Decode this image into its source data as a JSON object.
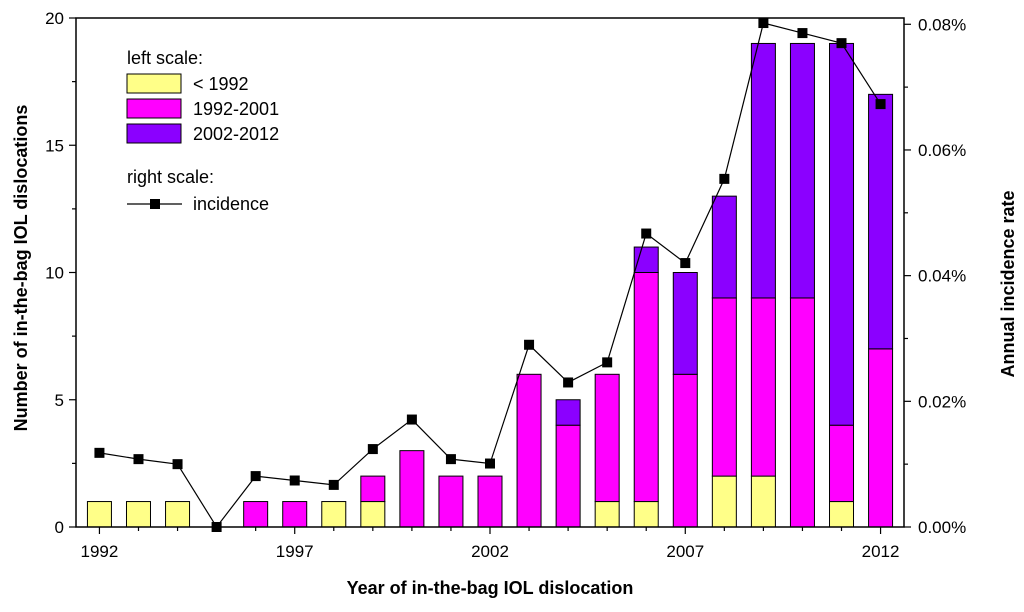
{
  "chart_data": {
    "type": "bar",
    "stacked": true,
    "xlabel": "Year of in-the-bag IOL dislocation",
    "ylabel": "Number of in-the-bag IOL dislocations",
    "ylabel_right": "Annual incidence rate",
    "x": [
      1992,
      1993,
      1994,
      1995,
      1996,
      1997,
      1998,
      1999,
      2000,
      2001,
      2002,
      2003,
      2004,
      2005,
      2006,
      2007,
      2008,
      2009,
      2010,
      2011,
      2012
    ],
    "x_ticks": [
      "1992",
      "1997",
      "2002",
      "2007",
      "2012"
    ],
    "ylim": [
      0,
      20
    ],
    "y_ticks": [
      "0",
      "5",
      "10",
      "15",
      "20"
    ],
    "ylim_right": [
      0,
      0.081
    ],
    "y_ticks_right": [
      "0.00%",
      "0.02%",
      "0.04%",
      "0.06%",
      "0.08%"
    ],
    "series": [
      {
        "name": "< 1992",
        "color": "#ffff88",
        "values": [
          1,
          1,
          1,
          0,
          0,
          0,
          1,
          1,
          0,
          0,
          0,
          0,
          0,
          1,
          1,
          0,
          2,
          2,
          0,
          1,
          0
        ]
      },
      {
        "name": "1992-2001",
        "color": "#ff00ff",
        "values": [
          0,
          0,
          0,
          0,
          1,
          1,
          0,
          1,
          3,
          2,
          2,
          6,
          4,
          5,
          9,
          6,
          7,
          7,
          9,
          3,
          7
        ]
      },
      {
        "name": "2002-2012",
        "color": "#8b00ff",
        "values": [
          0,
          0,
          0,
          0,
          0,
          0,
          0,
          0,
          0,
          0,
          0,
          0,
          1,
          0,
          1,
          4,
          4,
          10,
          10,
          15,
          10
        ]
      }
    ],
    "line_series": {
      "name": "incidence",
      "axis": "right",
      "values": [
        0.0118,
        0.0108,
        0.01,
        0.0,
        0.0081,
        0.0074,
        0.0067,
        0.0124,
        0.0171,
        0.0108,
        0.0101,
        0.029,
        0.023,
        0.0262,
        0.0467,
        0.042,
        0.0554,
        0.0802,
        0.0786,
        0.077,
        0.0673
      ]
    },
    "legend": {
      "left_title": "left scale:",
      "right_title": "right scale:",
      "entries": [
        "< 1992",
        "1992-2001",
        "2002-2012"
      ],
      "line_entry": "incidence",
      "placement": "top-left"
    }
  }
}
